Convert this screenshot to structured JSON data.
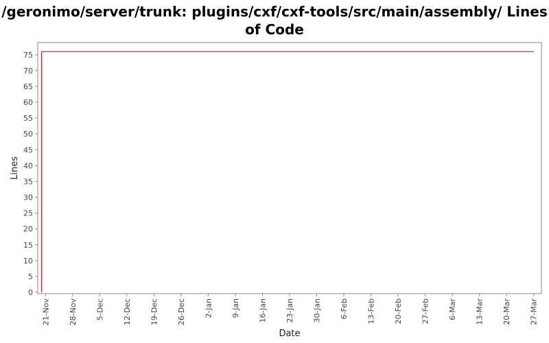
{
  "chart_data": {
    "type": "line",
    "title": "/geronimo/server/trunk: plugins/cxf/cxf-tools/src/main/assembly/ Lines of Code",
    "xlabel": "Date",
    "ylabel": "Lines",
    "y_ticks": [
      0,
      5,
      10,
      15,
      20,
      25,
      30,
      35,
      40,
      45,
      50,
      55,
      60,
      65,
      70,
      75
    ],
    "ylim": [
      0,
      78
    ],
    "x_ticks": [
      "21-Nov",
      "28-Nov",
      "5-Dec",
      "12-Dec",
      "19-Dec",
      "26-Dec",
      "2-Jan",
      "9-Jan",
      "16-Jan",
      "23-Jan",
      "30-Jan",
      "6-Feb",
      "13-Feb",
      "20-Feb",
      "27-Feb",
      "6-Mar",
      "13-Mar",
      "20-Mar",
      "27-Mar"
    ],
    "xlim": [
      "19-Nov",
      "29-Mar"
    ],
    "grid": false,
    "legend": "none",
    "series": [
      {
        "color": "#cc0000",
        "points": [
          {
            "x": "20-Nov",
            "y": 0
          },
          {
            "x": "20-Nov",
            "y": 76
          },
          {
            "x": "27-Mar",
            "y": 76
          }
        ]
      }
    ]
  }
}
